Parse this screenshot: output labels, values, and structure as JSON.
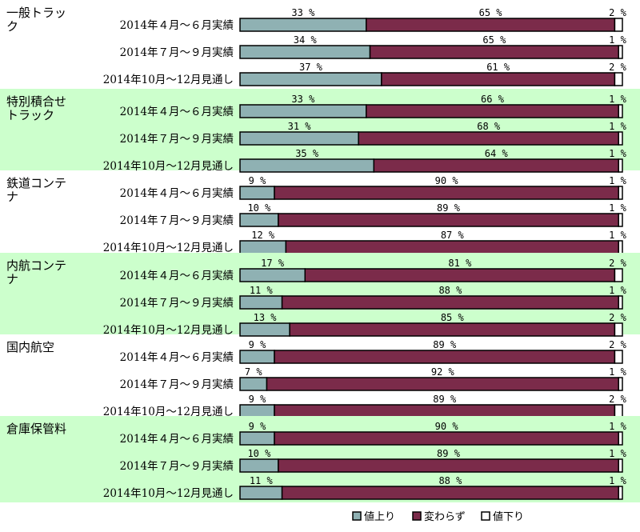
{
  "chart_data": {
    "type": "bar",
    "orientation": "horizontal",
    "stacked": "100%",
    "value_unit": "%",
    "groups": [
      {
        "name": "一般トラック",
        "shaded": false,
        "rows": [
          {
            "label": "2014年４月～６月実績",
            "values": [
              33,
              65,
              2
            ]
          },
          {
            "label": "2014年７月～９月実績",
            "values": [
              34,
              65,
              1
            ]
          },
          {
            "label": "2014年10月～12月見通し",
            "values": [
              37,
              61,
              2
            ]
          }
        ]
      },
      {
        "name": "特別積合せトラック",
        "shaded": true,
        "rows": [
          {
            "label": "2014年４月～６月実績",
            "values": [
              33,
              66,
              1
            ]
          },
          {
            "label": "2014年７月～９月実績",
            "values": [
              31,
              68,
              1
            ]
          },
          {
            "label": "2014年10月～12月見通し",
            "values": [
              35,
              64,
              1
            ]
          }
        ]
      },
      {
        "name": "鉄道コンテナ",
        "shaded": false,
        "rows": [
          {
            "label": "2014年４月～６月実績",
            "values": [
              9,
              90,
              1
            ]
          },
          {
            "label": "2014年７月～９月実績",
            "values": [
              10,
              89,
              1
            ]
          },
          {
            "label": "2014年10月～12月見通し",
            "values": [
              12,
              87,
              1
            ]
          }
        ]
      },
      {
        "name": "内航コンテナ",
        "shaded": true,
        "rows": [
          {
            "label": "2014年４月～６月実績",
            "values": [
              17,
              81,
              2
            ]
          },
          {
            "label": "2014年７月～９月実績",
            "values": [
              11,
              88,
              1
            ]
          },
          {
            "label": "2014年10月～12月見通し",
            "values": [
              13,
              85,
              2
            ]
          }
        ]
      },
      {
        "name": "国内航空",
        "shaded": false,
        "rows": [
          {
            "label": "2014年４月～６月実績",
            "values": [
              9,
              89,
              2
            ]
          },
          {
            "label": "2014年７月～９月実績",
            "values": [
              7,
              92,
              1
            ]
          },
          {
            "label": "2014年10月～12月見通し",
            "values": [
              9,
              89,
              2
            ]
          }
        ]
      },
      {
        "name": "倉庫保管料",
        "shaded": true,
        "rows": [
          {
            "label": "2014年４月～６月実績",
            "values": [
              9,
              90,
              1
            ]
          },
          {
            "label": "2014年７月～９月実績",
            "values": [
              10,
              89,
              1
            ]
          },
          {
            "label": "2014年10月～12月見通し",
            "values": [
              11,
              88,
              1
            ]
          }
        ]
      }
    ],
    "series": [
      {
        "name": "値上り",
        "color": "#8fb1b3"
      },
      {
        "name": "変わらず",
        "color": "#7b2b4a"
      },
      {
        "name": "値下り",
        "color": "#ffffff"
      }
    ],
    "legend_position": "bottom-right",
    "band_color": "#ccffcc",
    "grid": false
  }
}
